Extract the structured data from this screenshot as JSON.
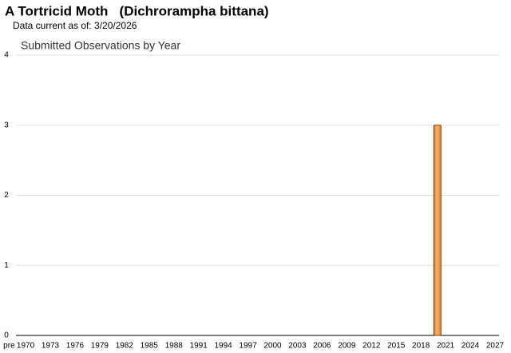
{
  "chart_data": {
    "type": "bar",
    "title": "A Tortricid Moth   (Dichrorampha bittana)",
    "subtitle": "Data current as of: 3/20/2026",
    "chart_title": "Submitted Observations by Year",
    "categories": [
      "pre",
      null,
      "1970",
      null,
      null,
      "1973",
      null,
      null,
      "1976",
      null,
      null,
      "1979",
      null,
      null,
      "1982",
      null,
      null,
      "1985",
      null,
      null,
      "1988",
      null,
      null,
      "1991",
      null,
      null,
      "1994",
      null,
      null,
      "1997",
      null,
      null,
      "2000",
      null,
      null,
      "2003",
      null,
      null,
      "2006",
      null,
      null,
      "2009",
      null,
      null,
      "2012",
      null,
      null,
      "2015",
      null,
      null,
      "2018",
      null,
      null,
      "2021",
      null,
      null,
      "2024",
      null,
      null,
      "2027"
    ],
    "values": [
      0,
      0,
      0,
      0,
      0,
      0,
      0,
      0,
      0,
      0,
      0,
      0,
      0,
      0,
      0,
      0,
      0,
      0,
      0,
      0,
      0,
      0,
      0,
      0,
      0,
      0,
      0,
      0,
      0,
      0,
      0,
      0,
      0,
      0,
      0,
      0,
      0,
      0,
      0,
      0,
      0,
      0,
      0,
      0,
      0,
      0,
      0,
      0,
      0,
      0,
      0,
      0,
      3,
      0,
      0,
      0,
      0,
      0,
      0,
      0
    ],
    "color": "#f2a552",
    "ylim": [
      0,
      4
    ],
    "yticks": [
      0,
      1,
      2,
      3,
      4
    ],
    "grid": true
  }
}
